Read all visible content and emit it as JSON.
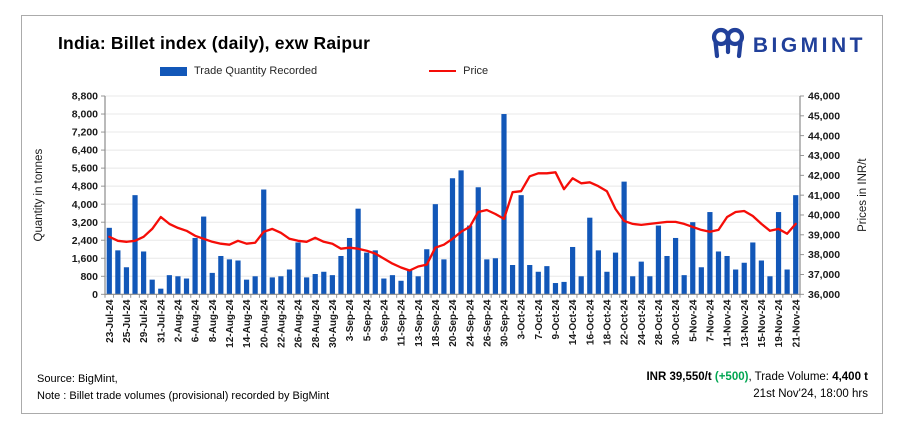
{
  "header": {
    "title": "India: Billet index (daily), exw Raipur",
    "logo_text": "BIGMINT"
  },
  "legend": {
    "bar_label": "Trade Quantity Recorded",
    "line_label": "Price"
  },
  "footer": {
    "source_line": "Source: BigMint,",
    "note_line": "Note : Billet trade volumes (provisional) recorded by BigMint",
    "price_text": "INR 39,550/t",
    "change_text": "(+500)",
    "after_change": ", ",
    "volume_label": "Trade Volume: ",
    "volume_value": "4,400 t",
    "datetime": "21st Nov'24, 18:00 hrs"
  },
  "colors": {
    "bar": "#1257b8",
    "line": "#f50d08",
    "logo_navy": "#21409a",
    "change_green": "#00a651"
  },
  "chart_data": {
    "type": "bar+line combo",
    "title": "India: Billet index (daily), exw Raipur",
    "grid": true,
    "legend_position": "top",
    "y_left": {
      "title": "Quantity in tonnes",
      "min": 0,
      "max": 8800,
      "step": 800
    },
    "y_right": {
      "title": "Prices in INR/t",
      "min": 36000,
      "max": 46000,
      "step": 1000
    },
    "categories": [
      "23-Jul-24",
      "",
      "25-Jul-24",
      "",
      "29-Jul-24",
      "",
      "31-Jul-24",
      "",
      "2-Aug-24",
      "",
      "6-Aug-24",
      "",
      "8-Aug-24",
      "",
      "12-Aug-24",
      "",
      "14-Aug-24",
      "",
      "20-Aug-24",
      "",
      "22-Aug-24",
      "",
      "26-Aug-24",
      "",
      "28-Aug-24",
      "",
      "30-Aug-24",
      "",
      "3-Sep-24",
      "",
      "5-Sep-24",
      "",
      "9-Sep-24",
      "",
      "11-Sep-24",
      "",
      "13-Sep-24",
      "",
      "18-Sep-24",
      "",
      "20-Sep-24",
      "",
      "24-Sep-24",
      "",
      "26-Sep-24",
      "",
      "30-Sep-24",
      "",
      "3-Oct-24",
      "",
      "7-Oct-24",
      "",
      "9-Oct-24",
      "",
      "14-Oct-24",
      "",
      "16-Oct-24",
      "",
      "18-Oct-24",
      "",
      "22-Oct-24",
      "",
      "24-Oct-24",
      "",
      "28-Oct-24",
      "",
      "30-Oct-24",
      "",
      "5-Nov-24",
      "",
      "7-Nov-24",
      "",
      "11-Nov-24",
      "",
      "13-Nov-24",
      "",
      "15-Nov-24",
      "",
      "19-Nov-24",
      "",
      "21-Nov-24"
    ],
    "series": [
      {
        "name": "Trade Quantity Recorded",
        "type": "bar",
        "axis": "left",
        "values": [
          2950,
          1950,
          1200,
          4400,
          1900,
          650,
          250,
          850,
          800,
          700,
          2500,
          3450,
          950,
          1700,
          1550,
          1500,
          650,
          800,
          4650,
          750,
          800,
          1100,
          2300,
          750,
          900,
          1000,
          850,
          1700,
          2500,
          3800,
          1850,
          1950,
          700,
          850,
          600,
          1100,
          800,
          2000,
          4000,
          1550,
          5150,
          5500,
          3050,
          4750,
          1550,
          1600,
          8000,
          1300,
          4400,
          1300,
          1000,
          1250,
          500,
          550,
          2100,
          800,
          3400,
          1950,
          1000,
          1850,
          5000,
          800,
          1450,
          800,
          3050,
          1700,
          2500,
          850,
          3200,
          1200,
          3650,
          1900,
          1700,
          1100,
          1400,
          2300,
          1500,
          800,
          3650,
          1100,
          4400
        ]
      },
      {
        "name": "Price",
        "type": "line",
        "axis": "right",
        "values": [
          38900,
          38700,
          38650,
          38700,
          38900,
          39300,
          39900,
          39550,
          39350,
          39200,
          38950,
          38800,
          38650,
          38550,
          38500,
          38700,
          38550,
          38600,
          39150,
          39300,
          39100,
          38800,
          38700,
          38650,
          38850,
          38650,
          38550,
          38300,
          38350,
          38300,
          38200,
          38050,
          37800,
          37550,
          37350,
          37200,
          37400,
          37500,
          38350,
          38500,
          38800,
          39150,
          39400,
          40150,
          40250,
          40050,
          39800,
          41150,
          41200,
          41950,
          42100,
          42100,
          42150,
          41300,
          41850,
          41600,
          41650,
          41450,
          41200,
          40300,
          39700,
          39550,
          39500,
          39550,
          39600,
          39650,
          39650,
          39550,
          39400,
          39250,
          39150,
          39250,
          39900,
          40150,
          40200,
          39950,
          39550,
          39200,
          39300,
          39050,
          39550
        ]
      }
    ]
  }
}
